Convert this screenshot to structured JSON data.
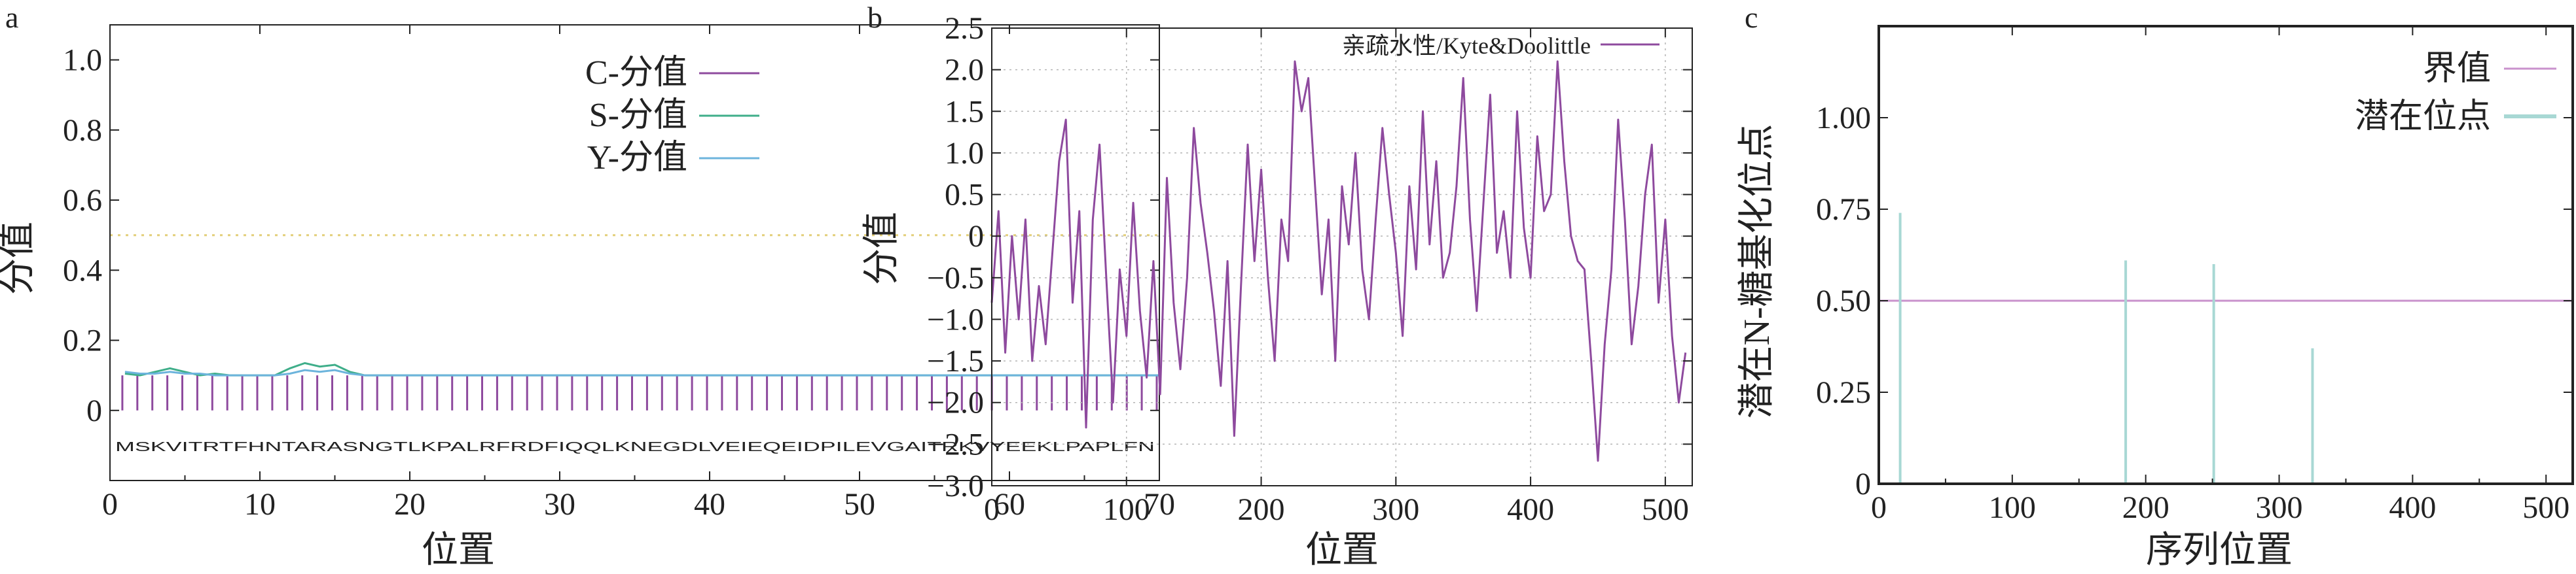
{
  "chart_data": [
    {
      "panel": "a",
      "type": "line",
      "xlabel": "位置",
      "ylabel": "分值",
      "xlim": [
        0,
        70
      ],
      "ylim": [
        -0.2,
        1.1
      ],
      "x_ticks": [
        0,
        10,
        20,
        30,
        40,
        50,
        60,
        70
      ],
      "y_ticks": [
        0,
        0.2,
        0.4,
        0.6,
        0.8,
        1.0
      ],
      "x_tick_labels": [
        "0",
        "10",
        "20",
        "30",
        "40",
        "50",
        "60",
        "70"
      ],
      "y_tick_labels": [
        "0",
        "0.2",
        "0.4",
        "0.6",
        "0.8",
        "1.0"
      ],
      "threshold": 0.5,
      "sequence": "MSKVITRTFHNTARASNGTLKPALRFRDFIQQLKNEGDLVEIEQEIDPILEVGAITRKVYEEKLPAPLFN",
      "legend_position": "top-right",
      "series": [
        {
          "name": "C-分值",
          "color": "#8e4a9e",
          "style": "impulse",
          "x": [
            1,
            2,
            3,
            4,
            5,
            6,
            7,
            8,
            9,
            10,
            11,
            12,
            13,
            14,
            15,
            16,
            17,
            18,
            19,
            20,
            21,
            22,
            23,
            24,
            25,
            26,
            27,
            28,
            29,
            30,
            31,
            32,
            33,
            34,
            35,
            36,
            37,
            38,
            39,
            40,
            41,
            42,
            43,
            44,
            45,
            46,
            47,
            48,
            49,
            50,
            51,
            52,
            53,
            54,
            55,
            56,
            57,
            58,
            59,
            60,
            61,
            62,
            63,
            64,
            65,
            66,
            67,
            68,
            69,
            70
          ],
          "values": [
            0.1,
            0.1,
            0.1,
            0.1,
            0.1,
            0.1,
            0.1,
            0.1,
            0.1,
            0.1,
            0.1,
            0.1,
            0.1,
            0.1,
            0.1,
            0.1,
            0.1,
            0.1,
            0.1,
            0.1,
            0.1,
            0.1,
            0.1,
            0.1,
            0.1,
            0.1,
            0.1,
            0.1,
            0.1,
            0.1,
            0.1,
            0.1,
            0.1,
            0.1,
            0.1,
            0.1,
            0.1,
            0.1,
            0.1,
            0.1,
            0.1,
            0.1,
            0.1,
            0.1,
            0.1,
            0.1,
            0.1,
            0.1,
            0.1,
            0.1,
            0.1,
            0.1,
            0.1,
            0.1,
            0.1,
            0.1,
            0.1,
            0.1,
            0.1,
            0.1,
            0.1,
            0.1,
            0.1,
            0.1,
            0.1,
            0.1,
            0.1,
            0.1,
            0.1,
            0.1
          ]
        },
        {
          "name": "S-分值",
          "color": "#3fae8a",
          "style": "line",
          "x": [
            1,
            2,
            3,
            4,
            5,
            6,
            7,
            8,
            9,
            10,
            11,
            12,
            13,
            14,
            15,
            16,
            17,
            18,
            19,
            20,
            22,
            24,
            26,
            28,
            30,
            35,
            40,
            45,
            50,
            55,
            60,
            65,
            70
          ],
          "values": [
            0.105,
            0.1,
            0.11,
            0.12,
            0.11,
            0.1,
            0.105,
            0.1,
            0.1,
            0.1,
            0.1,
            0.12,
            0.135,
            0.125,
            0.13,
            0.11,
            0.1,
            0.1,
            0.1,
            0.1,
            0.1,
            0.1,
            0.1,
            0.1,
            0.1,
            0.1,
            0.1,
            0.1,
            0.1,
            0.1,
            0.1,
            0.1,
            0.1
          ]
        },
        {
          "name": "Y-分值",
          "color": "#6cb4dc",
          "style": "line",
          "x": [
            1,
            2,
            3,
            4,
            5,
            6,
            7,
            8,
            9,
            10,
            11,
            12,
            13,
            14,
            15,
            16,
            17,
            18,
            19,
            20,
            22,
            24,
            26,
            28,
            30,
            35,
            40,
            45,
            50,
            55,
            60,
            65,
            70
          ],
          "values": [
            0.11,
            0.105,
            0.105,
            0.11,
            0.105,
            0.105,
            0.1,
            0.1,
            0.1,
            0.1,
            0.1,
            0.105,
            0.115,
            0.11,
            0.115,
            0.105,
            0.1,
            0.1,
            0.1,
            0.1,
            0.1,
            0.1,
            0.1,
            0.1,
            0.1,
            0.1,
            0.1,
            0.1,
            0.1,
            0.1,
            0.1,
            0.1,
            0.1
          ]
        }
      ]
    },
    {
      "panel": "b",
      "type": "line",
      "xlabel": "位置",
      "ylabel": "分值",
      "xlim": [
        0,
        520
      ],
      "ylim": [
        -3.0,
        2.5
      ],
      "x_ticks": [
        0,
        100,
        200,
        300,
        400,
        500
      ],
      "y_ticks": [
        -3.0,
        -2.5,
        -2.0,
        -1.5,
        -1.0,
        -0.5,
        0,
        0.5,
        1.0,
        1.5,
        2.0,
        2.5
      ],
      "x_tick_labels": [
        "0",
        "100",
        "200",
        "300",
        "400",
        "500"
      ],
      "y_tick_labels": [
        "−3.0",
        "−2.5",
        "−2.0",
        "−1.5",
        "−1.0",
        "−0.5",
        "0",
        "0.5",
        "1.0",
        "1.5",
        "2.0",
        "2.5"
      ],
      "grid": true,
      "legend_position": "top-right",
      "series": [
        {
          "name": "亲疏水性/Kyte&Doolittle",
          "color": "#8e4a9e",
          "x": [
            0,
            5,
            10,
            15,
            20,
            25,
            30,
            35,
            40,
            45,
            50,
            55,
            60,
            65,
            70,
            75,
            80,
            85,
            90,
            95,
            100,
            105,
            110,
            115,
            120,
            125,
            130,
            135,
            140,
            145,
            150,
            155,
            160,
            165,
            170,
            175,
            180,
            185,
            190,
            195,
            200,
            205,
            210,
            215,
            220,
            225,
            230,
            235,
            240,
            245,
            250,
            255,
            260,
            265,
            270,
            275,
            280,
            285,
            290,
            295,
            300,
            305,
            310,
            315,
            320,
            325,
            330,
            335,
            340,
            345,
            350,
            355,
            360,
            365,
            370,
            375,
            380,
            385,
            390,
            395,
            400,
            405,
            410,
            415,
            420,
            425,
            430,
            435,
            440,
            445,
            450,
            455,
            460,
            465,
            470,
            475,
            480,
            485,
            490,
            495,
            500,
            505,
            510,
            515
          ],
          "values": [
            -0.8,
            0.3,
            -1.4,
            0.0,
            -1.0,
            0.2,
            -1.5,
            -0.6,
            -1.3,
            -0.2,
            0.9,
            1.4,
            -0.8,
            0.3,
            -2.3,
            0.2,
            1.1,
            -0.5,
            -2.0,
            -0.4,
            -1.2,
            0.4,
            -0.9,
            -1.7,
            -0.3,
            -1.9,
            0.7,
            -0.8,
            -1.6,
            -0.5,
            1.3,
            0.4,
            -0.2,
            -0.9,
            -1.8,
            -0.3,
            -2.4,
            -0.6,
            1.1,
            -0.3,
            0.8,
            -0.5,
            -1.5,
            0.2,
            -0.3,
            2.1,
            1.5,
            1.9,
            0.6,
            -0.7,
            0.2,
            -1.5,
            0.6,
            -0.1,
            1.0,
            -0.4,
            -1.0,
            0.2,
            1.3,
            0.5,
            -0.2,
            -1.2,
            0.6,
            -0.4,
            1.5,
            -0.1,
            0.9,
            -0.5,
            -0.2,
            0.6,
            1.9,
            0.2,
            -0.9,
            0.4,
            1.7,
            -0.2,
            0.3,
            -0.5,
            1.5,
            0.1,
            -0.5,
            1.2,
            0.3,
            0.5,
            2.1,
            0.9,
            0.0,
            -0.3,
            -0.4,
            -1.5,
            -2.7,
            -1.3,
            -0.4,
            1.4,
            0.2,
            -1.3,
            -0.6,
            0.5,
            1.1,
            -0.8,
            0.2,
            -1.2,
            -2.0,
            -1.4
          ]
        }
      ]
    },
    {
      "panel": "c",
      "type": "bar",
      "xlabel": "序列位置",
      "ylabel": "潜在N-糖基化位点",
      "xlim": [
        0,
        520
      ],
      "ylim": [
        0,
        1.25
      ],
      "x_ticks": [
        0,
        100,
        200,
        300,
        400,
        500
      ],
      "y_ticks": [
        0,
        0.25,
        0.5,
        0.75,
        1.0
      ],
      "x_tick_labels": [
        "0",
        "100",
        "200",
        "300",
        "400",
        "500"
      ],
      "y_tick_labels": [
        "0",
        "0.25",
        "0.50",
        "0.75",
        "1.00"
      ],
      "legend_position": "top-right",
      "threshold": 0.5,
      "series": [
        {
          "name": "界值",
          "color": "#c992cc",
          "style": "hline",
          "values": [
            0.5
          ]
        },
        {
          "name": "潜在位点",
          "color": "#a8d8d4",
          "style": "impulse",
          "x": [
            16,
            185,
            251,
            325
          ],
          "values": [
            0.74,
            0.61,
            0.6,
            0.37
          ]
        }
      ]
    }
  ]
}
